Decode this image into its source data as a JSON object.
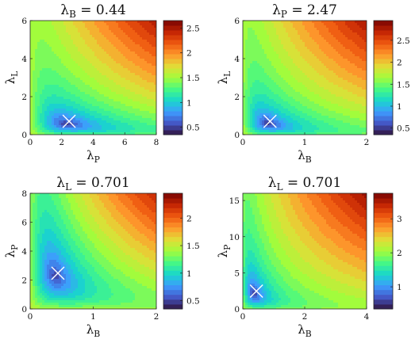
{
  "figure": {
    "colormap": "turbo",
    "marker": "white-x",
    "colormap_stops": [
      "#30123b",
      "#4455c4",
      "#3e9bfe",
      "#18d7cb",
      "#46f884",
      "#a2fc3c",
      "#e1dd37",
      "#fe9b2d",
      "#ef5911",
      "#c42503",
      "#7a0403"
    ]
  },
  "chart_data": [
    {
      "type": "heatmap",
      "subtype": "filled-contour",
      "title_symbol": "λ",
      "title_sub": "B",
      "title_value": "= 0.44",
      "xlabel_symbol": "λ",
      "xlabel_sub": "P",
      "ylabel_symbol": "λ",
      "ylabel_sub": "L",
      "xlim": [
        0,
        8
      ],
      "ylim": [
        0,
        6
      ],
      "xticks": [
        "0",
        "2",
        "4",
        "6",
        "8"
      ],
      "yticks": [
        "0",
        "2",
        "4",
        "6"
      ],
      "xtick_values": [
        0,
        2,
        4,
        6,
        8
      ],
      "ytick_values": [
        0,
        2,
        4,
        6
      ],
      "clim": [
        0.35,
        2.65
      ],
      "colorbar_ticks": [
        "0.5",
        "1",
        "1.5",
        "2",
        "2.5"
      ],
      "colorbar_tick_values": [
        0.5,
        1,
        1.5,
        2,
        2.5
      ],
      "minimum": {
        "x": 2.47,
        "y": 0.701
      },
      "surface": {
        "a": 0.44,
        "b": 2.47,
        "c": 0.701,
        "f_min": 0.35,
        "f_max": 2.65,
        "rx": 2.5,
        "ry": 0.85
      }
    },
    {
      "type": "heatmap",
      "subtype": "filled-contour",
      "title_symbol": "λ",
      "title_sub": "P",
      "title_value": "= 2.47",
      "xlabel_symbol": "λ",
      "xlabel_sub": "B",
      "ylabel_symbol": "λ",
      "ylabel_sub": "L",
      "xlim": [
        0,
        2
      ],
      "ylim": [
        0,
        6
      ],
      "xticks": [
        "0",
        "1",
        "2"
      ],
      "yticks": [
        "0",
        "2",
        "4",
        "6"
      ],
      "xtick_values": [
        0,
        1,
        2
      ],
      "ytick_values": [
        0,
        2,
        4,
        6
      ],
      "clim": [
        0.35,
        2.95
      ],
      "colorbar_ticks": [
        "0.5",
        "1",
        "1.5",
        "2",
        "2.5"
      ],
      "colorbar_tick_values": [
        0.5,
        1,
        1.5,
        2,
        2.5
      ],
      "minimum": {
        "x": 0.44,
        "y": 0.701
      },
      "surface": {
        "a": 0.44,
        "b": 2.47,
        "c": 0.701,
        "f_min": 0.35,
        "f_max": 2.95,
        "rx": 2.5,
        "ry": 0.85
      }
    },
    {
      "type": "heatmap",
      "subtype": "filled-contour",
      "title_symbol": "λ",
      "title_sub": "L",
      "title_value": "= 0.701",
      "xlabel_symbol": "λ",
      "xlabel_sub": "B",
      "ylabel_symbol": "λ",
      "ylabel_sub": "P",
      "xlim": [
        0,
        2
      ],
      "ylim": [
        0,
        8
      ],
      "xticks": [
        "0",
        "1",
        "2"
      ],
      "yticks": [
        "0",
        "2",
        "4",
        "6",
        "8"
      ],
      "xtick_values": [
        0,
        1,
        2
      ],
      "ytick_values": [
        0,
        2,
        4,
        6,
        8
      ],
      "clim": [
        0.35,
        2.45
      ],
      "colorbar_ticks": [
        "0.5",
        "1",
        "1.5",
        "2"
      ],
      "colorbar_tick_values": [
        0.5,
        1,
        1.5,
        2
      ],
      "minimum": {
        "x": 0.44,
        "y": 2.47
      },
      "surface": {
        "a": 0.44,
        "b": 2.47,
        "c": 0.701,
        "f_min": 0.35,
        "f_max": 2.45,
        "rx": 2.5,
        "ry": 2.5
      }
    },
    {
      "type": "heatmap",
      "subtype": "filled-contour",
      "title_symbol": "λ",
      "title_sub": "L",
      "title_value": "= 0.701",
      "xlabel_symbol": "λ",
      "xlabel_sub": "B",
      "ylabel_symbol": "λ",
      "ylabel_sub": "P",
      "xlim": [
        0,
        4
      ],
      "ylim": [
        0,
        16
      ],
      "xticks": [
        "0",
        "2",
        "4"
      ],
      "yticks": [
        "0",
        "5",
        "10",
        "15"
      ],
      "xtick_values": [
        0,
        2,
        4
      ],
      "ytick_values": [
        0,
        5,
        10,
        15
      ],
      "clim": [
        0.35,
        3.75
      ],
      "colorbar_ticks": [
        "1",
        "2",
        "3"
      ],
      "colorbar_tick_values": [
        1,
        2,
        3
      ],
      "minimum": {
        "x": 0.44,
        "y": 2.47
      },
      "surface": {
        "a": 0.44,
        "b": 2.47,
        "c": 0.701,
        "f_min": 0.35,
        "f_max": 3.75,
        "rx": 2.5,
        "ry": 2.5
      }
    }
  ]
}
